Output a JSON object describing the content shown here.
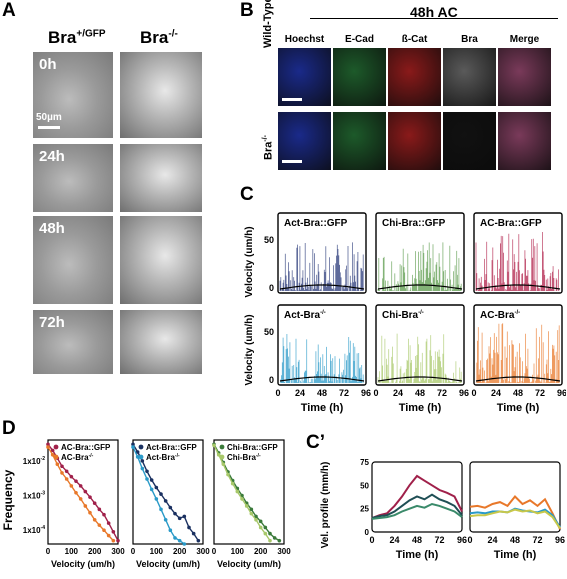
{
  "panels": {
    "A": "A",
    "B": "B",
    "C": "C",
    "D": "D",
    "Cp": "C’"
  },
  "panelA": {
    "col_gfp": "Bra",
    "col_gfp_sup": "+/GFP",
    "col_ko": "Bra",
    "col_ko_sup": "-/-",
    "scale": "50µm",
    "times": [
      "0h",
      "24h",
      "48h",
      "72h"
    ]
  },
  "panelB": {
    "header": "48h AC",
    "cols": [
      "Hoechst",
      "E-Cad",
      "ß-Cat",
      "Bra",
      "Merge"
    ],
    "rows": [
      "Wild-Type",
      "Bra"
    ],
    "row2_sup": "-/-",
    "colors": {
      "hoechst": "#1a2a8a",
      "ecad": "#1d5a2a",
      "bcat": "#8a1a1a",
      "bra": "#5a5a5a",
      "merge": "#7a3a5a"
    }
  },
  "panelC": {
    "ylabel": "Velocity (um/h)",
    "xlabel": "Time (h)",
    "xticks": [
      "0",
      "24",
      "48",
      "72",
      "96"
    ],
    "titles_top": [
      "Act-Bra::GFP",
      "Chi-Bra::GFP",
      "AC-Bra::GFP"
    ],
    "titles_bottom": [
      "Act-Bra",
      "Chi-Bra",
      "AC-Bra"
    ],
    "sup": "-/-",
    "colors_top": [
      "#2a3a7a",
      "#5a9a4a",
      "#b0204a"
    ],
    "colors_bottom": [
      "#2a9ac8",
      "#a8c86a",
      "#e8782a"
    ]
  },
  "panelD": {
    "ylabel": "Frequency",
    "xlabel": "Velocity (um/h)",
    "yticks": [
      "1x10",
      "1x10",
      "1x10"
    ],
    "ytick_exp": [
      "-2",
      "-3",
      "-4"
    ],
    "xticks": [
      "0",
      "100",
      "200",
      "300"
    ],
    "legends": [
      [
        "AC-Bra::GFP",
        "AC-Bra"
      ],
      [
        "Act-Bra::GFP",
        "Act-Bra"
      ],
      [
        "Chi-Bra::GFP",
        "Chi-Bra"
      ]
    ],
    "legend_sup": "-/-"
  },
  "panelCp": {
    "ylabel": "Vel. profile (mm/h)",
    "xlabel": "Time (h)",
    "yticks": [
      "0",
      "25",
      "50",
      "75"
    ],
    "xticks": [
      "0",
      "24",
      "48",
      "72",
      "96"
    ]
  },
  "chart_data": [
    {
      "type": "line",
      "xlabel": "Velocity (um/h)",
      "ylabel": "Frequency",
      "yscale": "log",
      "series": [
        {
          "name": "AC-Bra::GFP",
          "color": "#a0204a",
          "x": [
            0,
            20,
            40,
            60,
            80,
            100,
            120,
            140,
            160,
            180,
            200,
            220,
            240,
            260,
            280,
            300
          ],
          "y": [
            0.03,
            0.02,
            0.012,
            0.007,
            0.005,
            0.0035,
            0.0026,
            0.0019,
            0.0013,
            0.0009,
            0.0006,
            0.0004,
            0.00028,
            0.00016,
            9e-05,
            5e-05
          ]
        },
        {
          "name": "AC-Bra",
          "color": "#e8782a",
          "x": [
            0,
            20,
            40,
            60,
            80,
            100,
            120,
            140,
            160,
            180,
            200,
            220,
            240,
            260,
            280
          ],
          "y": [
            0.025,
            0.015,
            0.008,
            0.0045,
            0.003,
            0.0019,
            0.0012,
            0.0008,
            0.0005,
            0.00032,
            0.0002,
            0.00014,
            0.0001,
            7e-05,
            5e-05
          ]
        }
      ]
    },
    {
      "type": "line",
      "xlabel": "Velocity (um/h)",
      "yscale": "log",
      "series": [
        {
          "name": "Act-Bra::GFP",
          "color": "#1a3060",
          "x": [
            0,
            20,
            40,
            60,
            80,
            100,
            120,
            140,
            160,
            180,
            200,
            220,
            240,
            260,
            280
          ],
          "y": [
            0.03,
            0.018,
            0.01,
            0.005,
            0.0028,
            0.0017,
            0.0011,
            0.0007,
            0.00045,
            0.0003,
            0.00022,
            0.00025,
            0.00012,
            8e-05,
            5e-05
          ]
        },
        {
          "name": "Act-Bra",
          "color": "#2a9ac8",
          "x": [
            0,
            20,
            40,
            60,
            80,
            100,
            120,
            140,
            160,
            180,
            200,
            220
          ],
          "y": [
            0.025,
            0.013,
            0.006,
            0.003,
            0.0015,
            0.0008,
            0.0004,
            0.0002,
            0.0001,
            6e-05,
            5e-05,
            4e-05
          ]
        }
      ]
    },
    {
      "type": "line",
      "xlabel": "Velocity (um/h)",
      "yscale": "log",
      "series": [
        {
          "name": "Chi-Bra::GFP",
          "color": "#3a7a3a",
          "x": [
            0,
            20,
            40,
            60,
            80,
            100,
            120,
            140,
            160,
            180,
            200,
            220,
            240,
            260,
            280
          ],
          "y": [
            0.03,
            0.017,
            0.009,
            0.0048,
            0.0027,
            0.0016,
            0.001,
            0.0006,
            0.0004,
            0.00025,
            0.00018,
            0.00012,
            8e-05,
            6e-05,
            5e-05
          ]
        },
        {
          "name": "Chi-Bra",
          "color": "#a8c86a",
          "x": [
            0,
            20,
            40,
            60,
            80,
            100,
            120,
            140,
            160,
            180,
            200,
            220,
            240
          ],
          "y": [
            0.028,
            0.015,
            0.008,
            0.004,
            0.0022,
            0.0013,
            0.0008,
            0.0005,
            0.0003,
            0.0002,
            0.00012,
            8e-05,
            5e-05
          ]
        }
      ]
    },
    {
      "type": "line",
      "xlabel": "Time (h)",
      "ylabel": "Vel. profile (mm/h)",
      "ylim": [
        0,
        75
      ],
      "xlim": [
        0,
        96
      ],
      "series": [
        {
          "color": "#a0204a",
          "x": [
            0,
            8,
            16,
            24,
            32,
            40,
            48,
            56,
            64,
            72,
            80,
            88,
            96
          ],
          "y": [
            15,
            18,
            20,
            28,
            38,
            50,
            60,
            55,
            50,
            45,
            42,
            38,
            22
          ]
        },
        {
          "color": "#1f4f55",
          "x": [
            0,
            8,
            16,
            24,
            32,
            40,
            48,
            56,
            64,
            72,
            80,
            88,
            96
          ],
          "y": [
            15,
            17,
            18,
            22,
            28,
            34,
            38,
            35,
            40,
            35,
            32,
            28,
            18
          ]
        },
        {
          "color": "#3a8a6a",
          "x": [
            0,
            8,
            16,
            24,
            32,
            40,
            48,
            56,
            64,
            72,
            80,
            88,
            96
          ],
          "y": [
            14,
            15,
            16,
            18,
            22,
            25,
            28,
            26,
            30,
            28,
            25,
            22,
            16
          ]
        }
      ]
    },
    {
      "type": "line",
      "xlabel": "Time (h)",
      "ylim": [
        0,
        75
      ],
      "xlim": [
        0,
        96
      ],
      "series": [
        {
          "color": "#e8782a",
          "x": [
            0,
            8,
            16,
            24,
            32,
            40,
            48,
            56,
            64,
            72,
            80,
            88,
            96
          ],
          "y": [
            27,
            28,
            26,
            30,
            32,
            28,
            38,
            30,
            34,
            28,
            35,
            20,
            3
          ]
        },
        {
          "color": "#2a9ac8",
          "x": [
            0,
            8,
            16,
            24,
            32,
            40,
            48,
            56,
            64,
            72,
            80,
            88,
            96
          ],
          "y": [
            20,
            21,
            20,
            22,
            22,
            21,
            25,
            23,
            22,
            21,
            24,
            18,
            5
          ]
        },
        {
          "color": "#c8c84a",
          "x": [
            0,
            8,
            16,
            24,
            32,
            40,
            48,
            56,
            64,
            72,
            80,
            88,
            96
          ],
          "y": [
            17,
            18,
            18,
            20,
            22,
            21,
            24,
            22,
            23,
            20,
            22,
            16,
            4
          ]
        }
      ]
    }
  ]
}
